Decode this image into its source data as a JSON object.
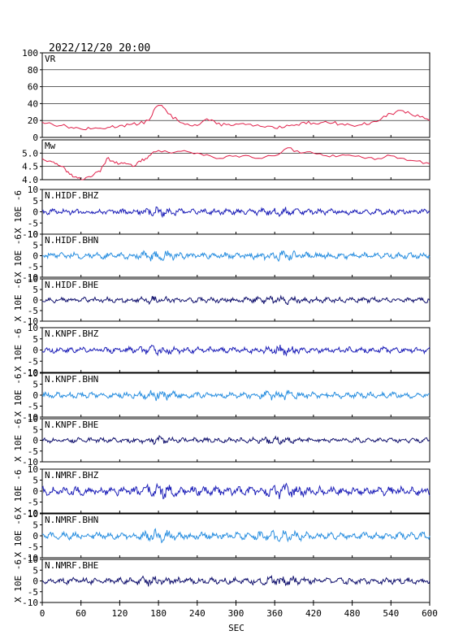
{
  "header": {
    "timestamp": "2022/12/20 20:00"
  },
  "colors": {
    "vr": "#e0204a",
    "mw": "#e0204a",
    "bhz": "#1d1fb8",
    "bhn": "#2a8fe0",
    "bhe": "#12126e",
    "axes": "#000000",
    "grid": "#000000"
  },
  "chart_data": {
    "type": "line",
    "xlabel": "SEC",
    "xlim": [
      0,
      600
    ],
    "xticks": [
      0,
      60,
      120,
      180,
      240,
      300,
      360,
      420,
      480,
      540,
      600
    ],
    "panels": [
      {
        "id": "vr",
        "label": "VR",
        "ylim": [
          0,
          100
        ],
        "yticks": [
          0,
          20,
          40,
          60,
          80,
          100
        ],
        "grid": true,
        "series": {
          "x": [
            0,
            15,
            30,
            45,
            60,
            75,
            90,
            105,
            120,
            135,
            150,
            165,
            175,
            185,
            195,
            210,
            225,
            240,
            255,
            270,
            285,
            300,
            315,
            330,
            345,
            360,
            375,
            390,
            405,
            420,
            435,
            450,
            465,
            480,
            495,
            510,
            525,
            540,
            555,
            570,
            585,
            600
          ],
          "y": [
            18,
            16,
            14,
            12,
            10,
            10,
            11,
            12,
            14,
            15,
            16,
            20,
            35,
            38,
            28,
            20,
            16,
            14,
            22,
            16,
            15,
            16,
            15,
            14,
            12,
            11,
            12,
            14,
            18,
            17,
            18,
            17,
            16,
            14,
            15,
            18,
            22,
            28,
            32,
            28,
            24,
            20
          ]
        }
      },
      {
        "id": "mw",
        "label": "Mw",
        "ylim": [
          4.0,
          5.5
        ],
        "yticks": [
          4.0,
          4.5,
          5.0
        ],
        "grid": true,
        "series": {
          "x": [
            0,
            10,
            20,
            30,
            40,
            50,
            60,
            70,
            80,
            90,
            100,
            110,
            120,
            130,
            140,
            150,
            160,
            170,
            180,
            200,
            220,
            240,
            260,
            280,
            300,
            320,
            340,
            360,
            380,
            400,
            420,
            440,
            460,
            480,
            500,
            520,
            540,
            560,
            580,
            600
          ],
          "y": [
            4.8,
            4.7,
            4.6,
            4.5,
            4.3,
            4.1,
            4.0,
            4.1,
            4.2,
            4.3,
            4.8,
            4.7,
            4.6,
            4.6,
            4.5,
            4.7,
            4.8,
            5.0,
            5.1,
            5.0,
            5.1,
            5.0,
            4.9,
            4.8,
            4.9,
            4.9,
            4.8,
            4.9,
            5.2,
            5.0,
            5.0,
            4.9,
            4.9,
            4.9,
            4.8,
            4.8,
            4.9,
            4.8,
            4.7,
            4.6
          ]
        }
      },
      {
        "id": "hidf-bhz",
        "label": "N.HIDF.BHZ",
        "ylim": [
          -10,
          10
        ],
        "yticks": [
          -10,
          -5,
          0,
          5,
          10
        ],
        "ylabel": "X 10E -6",
        "color_key": "bhz",
        "amplitude": 1.0
      },
      {
        "id": "hidf-bhn",
        "label": "N.HIDF.BHN",
        "ylim": [
          -10,
          10
        ],
        "yticks": [
          -10,
          -5,
          0,
          5,
          10
        ],
        "ylabel": "X 10E -6",
        "color_key": "bhn",
        "amplitude": 1.2
      },
      {
        "id": "hidf-bhe",
        "label": "N.HIDF.BHE",
        "ylim": [
          -10,
          10
        ],
        "yticks": [
          -10,
          -5,
          0,
          5,
          10
        ],
        "ylabel": "X 10E -6",
        "color_key": "bhe",
        "amplitude": 1.0
      },
      {
        "id": "knpf-bhz",
        "label": "N.KNPF.BHZ",
        "ylim": [
          -10,
          10
        ],
        "yticks": [
          -10,
          -5,
          0,
          5,
          10
        ],
        "ylabel": "X 10E -6",
        "color_key": "bhz",
        "amplitude": 1.1
      },
      {
        "id": "knpf-bhn",
        "label": "N.KNPF.BHN",
        "ylim": [
          -10,
          10
        ],
        "yticks": [
          -10,
          -5,
          0,
          5,
          10
        ],
        "ylabel": "X 10E -6",
        "color_key": "bhn",
        "amplitude": 1.1
      },
      {
        "id": "knpf-bhe",
        "label": "N.KNPF.BHE",
        "ylim": [
          -10,
          10
        ],
        "yticks": [
          -10,
          -5,
          0,
          5,
          10
        ],
        "ylabel": "X 10E -6",
        "color_key": "bhe",
        "amplitude": 0.9
      },
      {
        "id": "nmrf-bhz",
        "label": "N.NMRF.BHZ",
        "ylim": [
          -10,
          10
        ],
        "yticks": [
          -10,
          -5,
          0,
          5,
          10
        ],
        "ylabel": "X 10E -6",
        "color_key": "bhz",
        "amplitude": 1.6
      },
      {
        "id": "nmrf-bhn",
        "label": "N.NMRF.BHN",
        "ylim": [
          -10,
          10
        ],
        "yticks": [
          -10,
          -5,
          0,
          5,
          10
        ],
        "ylabel": "X 10E -6",
        "color_key": "bhn",
        "amplitude": 1.3
      },
      {
        "id": "nmrf-bhe",
        "label": "N.NMRF.BHE",
        "ylim": [
          -10,
          10
        ],
        "yticks": [
          -10,
          -5,
          0,
          5,
          10
        ],
        "ylabel": "X 10E -6",
        "color_key": "bhe",
        "amplitude": 1.2
      }
    ]
  }
}
